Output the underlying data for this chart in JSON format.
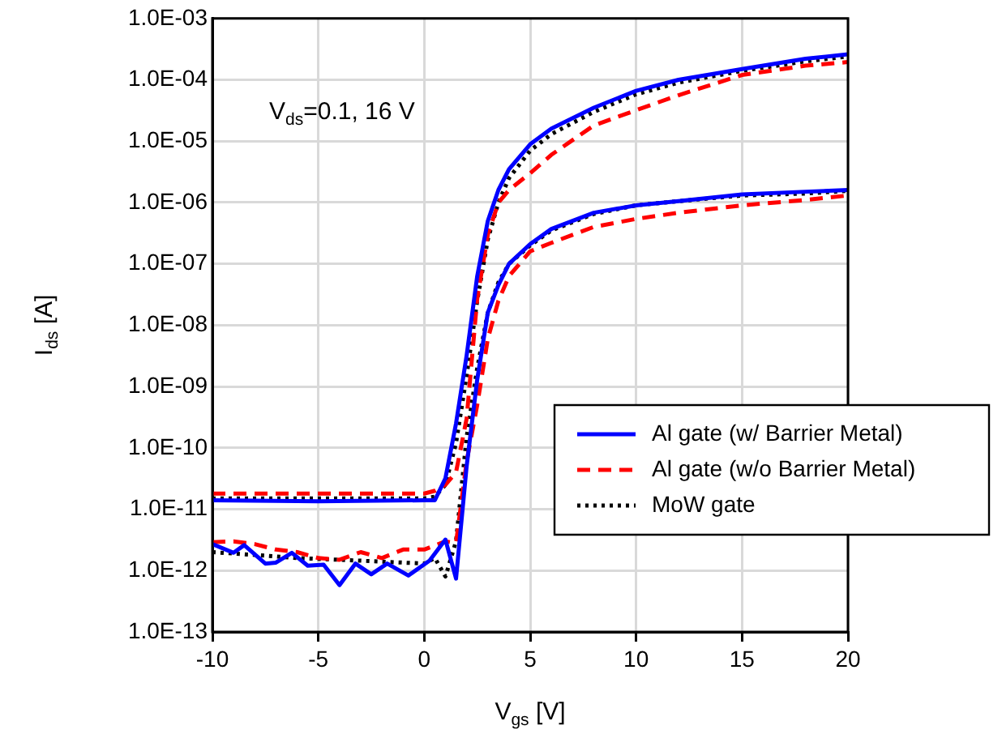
{
  "chart_data": {
    "type": "line",
    "xlabel": "V$_{gs}$ [V]",
    "ylabel": "I$_{ds}$ [A]",
    "log": "y",
    "grid": true,
    "legend": "bottom right",
    "marker": "none",
    "xlim": [
      -10,
      20
    ],
    "xticks": [
      -10,
      -5,
      0,
      5,
      10,
      15,
      20
    ],
    "ylim": [
      1e-13,
      0.001
    ],
    "yticks": [
      {
        "value": 1e-13,
        "label": "1.0E-13"
      },
      {
        "value": 1e-12,
        "label": "1.0E-12"
      },
      {
        "value": 1e-11,
        "label": "1.0E-11"
      },
      {
        "value": 1e-10,
        "label": "1.0E-10"
      },
      {
        "value": 1e-09,
        "label": "1.0E-09"
      },
      {
        "value": 1e-08,
        "label": "1.0E-08"
      },
      {
        "value": 1e-07,
        "label": "1.0E-07"
      },
      {
        "value": 1e-06,
        "label": "1.0E-06"
      },
      {
        "value": 1e-05,
        "label": "1.0E-05"
      },
      {
        "value": 0.0001,
        "label": "1.0E-04"
      },
      {
        "value": 0.001,
        "label": "1.0E-03"
      }
    ],
    "annotations": [
      "V$_{ds}$=0.1, 16 V"
    ],
    "series": [
      {
        "name": "Al gate (w/ Barrier Metal)",
        "color": "#0000ff",
        "line_style": "solid",
        "x": [
          -10,
          -5,
          0,
          0.5,
          1,
          1.5,
          2,
          2.5,
          3,
          3.5,
          4,
          5,
          6,
          8,
          10,
          12,
          15,
          18,
          20
        ],
        "values": [
          1.4e-11,
          1.35e-11,
          1.4e-11,
          1.4e-11,
          3.2e-11,
          2.5e-10,
          3.2e-09,
          6.3e-08,
          5e-07,
          1.6e-06,
          3.5e-06,
          8.9e-06,
          1.6e-05,
          3.5e-05,
          6.6e-05,
          0.0001,
          0.00015,
          0.00022,
          0.00026
        ]
      },
      {
        "name": "Al gate (w/o Barrier Metal)",
        "color": "#ff0000",
        "line_style": "dashed",
        "x": [
          -10,
          -5,
          0,
          0.5,
          1,
          1.5,
          2,
          2.5,
          3,
          3.5,
          4,
          5,
          6,
          8,
          10,
          12,
          15,
          18,
          20
        ],
        "values": [
          1.8e-11,
          1.8e-11,
          1.8e-11,
          2e-11,
          2.5e-11,
          4e-11,
          3e-10,
          2.7e-08,
          3e-07,
          1e-06,
          1.6e-06,
          3e-06,
          6e-06,
          1.8e-05,
          3.2e-05,
          5.6e-05,
          0.00012,
          0.00017,
          0.000195
        ]
      },
      {
        "name": "MoW gate",
        "color": "#000000",
        "line_style": "dotted",
        "x": [
          -10,
          -5,
          0,
          0.5,
          1,
          1.5,
          2,
          2.5,
          3,
          3.5,
          4,
          5,
          6,
          8,
          10,
          12,
          15,
          18,
          20
        ],
        "values": [
          1.5e-11,
          1.5e-11,
          1.5e-11,
          1.6e-11,
          2.5e-11,
          1.2e-10,
          1.5e-09,
          2.5e-08,
          2.5e-07,
          1e-06,
          2.5e-06,
          7e-06,
          1.3e-05,
          3e-05,
          5.8e-05,
          9e-05,
          0.00014,
          0.0002,
          0.00024
        ]
      },
      {
        "color": "#0000ff",
        "line_style": "solid",
        "x": [
          -10,
          -9,
          -8.5,
          -7.5,
          -7,
          -6.25,
          -5.5,
          -4.75,
          -4,
          -3.25,
          -2.5,
          -1.75,
          -0.75,
          0.25,
          1,
          1.5,
          2,
          2.5,
          3,
          3.5,
          4,
          5,
          6,
          8,
          10,
          12,
          15,
          18,
          20
        ],
        "values": [
          2.7e-12,
          1.95e-12,
          2.6e-12,
          1.3e-12,
          1.35e-12,
          1.95e-12,
          1.2e-12,
          1.25e-12,
          5.8e-13,
          1.3e-12,
          8.7e-13,
          1.3e-12,
          8.3e-13,
          1.45e-12,
          3.2e-12,
          7.4e-13,
          5e-11,
          1.3e-09,
          1.6e-08,
          4.5e-08,
          1e-07,
          2.1e-07,
          3.7e-07,
          6.8e-07,
          9e-07,
          1.05e-06,
          1.35e-06,
          1.5e-06,
          1.6e-06
        ]
      },
      {
        "color": "#ff0000",
        "line_style": "dashed",
        "x": [
          -10,
          -9,
          -8,
          -7,
          -6,
          -5,
          -4,
          -3,
          -2,
          -1,
          0,
          1,
          1.5,
          2,
          2.5,
          3,
          3.5,
          4,
          5,
          6,
          8,
          10,
          12,
          15,
          18,
          20
        ],
        "values": [
          2.9e-12,
          3e-12,
          2.7e-12,
          2.2e-12,
          2e-12,
          1.6e-12,
          1.5e-12,
          2e-12,
          1.6e-12,
          2.2e-12,
          2.2e-12,
          3e-12,
          2.8e-12,
          6e-11,
          5e-10,
          6e-09,
          2.5e-08,
          6.3e-08,
          1.6e-07,
          2.2e-07,
          4e-07,
          5.4e-07,
          6.8e-07,
          9e-07,
          1.1e-06,
          1.3e-06
        ]
      },
      {
        "color": "#000000",
        "line_style": "dotted",
        "x": [
          -10,
          -8,
          -6,
          -4,
          -2,
          0,
          0.5,
          1,
          1.5,
          2,
          2.5,
          3,
          3.5,
          4,
          5,
          6,
          8,
          10,
          12,
          15,
          18,
          20
        ],
        "values": [
          2e-12,
          1.8e-12,
          1.6e-12,
          1.5e-12,
          1.4e-12,
          1.3e-12,
          1.6e-12,
          8e-13,
          3e-12,
          1.5e-10,
          2e-09,
          1.6e-08,
          5e-08,
          1e-07,
          2e-07,
          3.5e-07,
          6.5e-07,
          9e-07,
          1.05e-06,
          1.3e-06,
          1.4e-06,
          1.55e-06
        ]
      }
    ]
  }
}
